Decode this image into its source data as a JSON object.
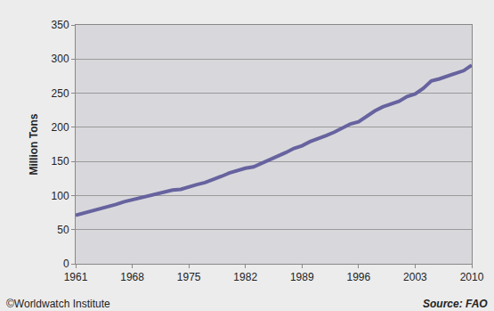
{
  "chart_data": {
    "type": "line",
    "y_label": "Million Tons",
    "annotations": [
      "©Worldwatch Institute",
      "Source: FAO"
    ],
    "x": [
      1961,
      1962,
      1963,
      1964,
      1965,
      1966,
      1967,
      1968,
      1969,
      1970,
      1971,
      1972,
      1973,
      1974,
      1975,
      1976,
      1977,
      1978,
      1979,
      1980,
      1981,
      1982,
      1983,
      1984,
      1985,
      1986,
      1987,
      1988,
      1989,
      1990,
      1991,
      1992,
      1993,
      1994,
      1995,
      1996,
      1997,
      1998,
      1999,
      2000,
      2001,
      2002,
      2003,
      2004,
      2005,
      2006,
      2007,
      2008,
      2009,
      2010
    ],
    "values": [
      71,
      74,
      78,
      80,
      83,
      87,
      91,
      94,
      96,
      99,
      103,
      106,
      108,
      109,
      113,
      116,
      119,
      123,
      128,
      133,
      137,
      140,
      142,
      147,
      152,
      158,
      163,
      169,
      173,
      179,
      183,
      188,
      193,
      199,
      205,
      208,
      216,
      224,
      230,
      234,
      238,
      245,
      249,
      257,
      268,
      271,
      275,
      280,
      283,
      291
    ],
    "color": "#67639f",
    "xlim": [
      1961,
      2010
    ],
    "ylim": [
      0,
      350
    ],
    "xticks": [
      1961,
      1968,
      1975,
      1982,
      1989,
      1996,
      2003,
      2010
    ],
    "yticks": [
      0,
      50,
      100,
      150,
      200,
      250,
      300,
      350
    ],
    "grid": true
  }
}
